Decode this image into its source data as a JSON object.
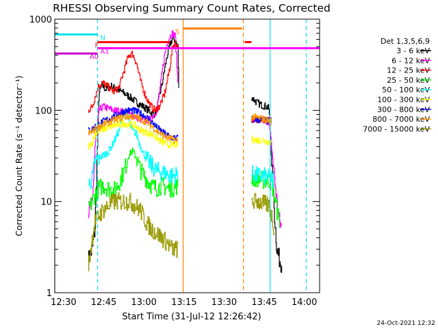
{
  "chart_data": {
    "type": "line",
    "title": "RHESSI Observing Summary Count Rates, Corrected",
    "xlabel": "Start Time (31-Jul-12 12:26:42)",
    "ylabel": "Corrected Count Rate (s⁻¹ detector⁻¹)",
    "yscale": "log",
    "ylim": [
      1,
      1000
    ],
    "xlim_minutes_after_1226_42": [
      0,
      99
    ],
    "x_tick_labels": [
      "12:30",
      "12:45",
      "13:00",
      "13:15",
      "13:30",
      "13:45",
      "14:00"
    ],
    "y_tick_labels": [
      "1",
      "10",
      "100",
      "1000"
    ],
    "legend_title": "Det 1,3,5,6,9",
    "legend_position": "right",
    "date_stamp": "24-Oct-2021 12:32",
    "series": [
      {
        "name": "3 - 6 keV",
        "color": "#000000",
        "seg1": [
          [
            12.5,
            2.3
          ],
          [
            14,
            3
          ],
          [
            15,
            5
          ],
          [
            16.5,
            150
          ],
          [
            17.5,
            190
          ],
          [
            19,
            170
          ],
          [
            21,
            185
          ],
          [
            23,
            170
          ],
          [
            25,
            160
          ],
          [
            28,
            140
          ],
          [
            31,
            120
          ],
          [
            33,
            110
          ],
          [
            35,
            100
          ],
          [
            37,
            90
          ],
          [
            38,
            100
          ],
          [
            39,
            140
          ],
          [
            40,
            190
          ],
          [
            41,
            280
          ],
          [
            42,
            400
          ],
          [
            43,
            520
          ],
          [
            44,
            620
          ],
          [
            45,
            580
          ],
          [
            46,
            500
          ],
          [
            46.5,
            100
          ]
        ],
        "seg2": [
          [
            73.5,
            140
          ],
          [
            75,
            125
          ],
          [
            77,
            115
          ],
          [
            79,
            110
          ],
          [
            80,
            105
          ],
          [
            80.5,
            60
          ],
          [
            81,
            30
          ],
          [
            82,
            8
          ],
          [
            83,
            3
          ],
          [
            84,
            2.3
          ],
          [
            85,
            2
          ]
        ]
      },
      {
        "name": "6 - 12 keV",
        "color": "#ff00ff",
        "seg1": [
          [
            12.5,
            8
          ],
          [
            14,
            9
          ],
          [
            15,
            40
          ],
          [
            16.5,
            100
          ],
          [
            18,
            110
          ],
          [
            20,
            105
          ],
          [
            22,
            100
          ],
          [
            24,
            98
          ],
          [
            26,
            95
          ],
          [
            28,
            90
          ],
          [
            30,
            85
          ],
          [
            32,
            80
          ],
          [
            34,
            78
          ],
          [
            36,
            80
          ],
          [
            38,
            100
          ],
          [
            39,
            150
          ],
          [
            40,
            250
          ],
          [
            41,
            400
          ],
          [
            42,
            550
          ],
          [
            43,
            650
          ],
          [
            44,
            700
          ],
          [
            45,
            650
          ],
          [
            46,
            200
          ]
        ],
        "seg2": [
          [
            73.5,
            80
          ],
          [
            75,
            78
          ],
          [
            77,
            78
          ],
          [
            79,
            76
          ],
          [
            80,
            75
          ],
          [
            81,
            40
          ],
          [
            82,
            20
          ],
          [
            83,
            10
          ],
          [
            84,
            6
          ],
          [
            85,
            5
          ]
        ]
      },
      {
        "name": "12 - 25 keV",
        "color": "#ff0000",
        "seg1": [
          [
            12.5,
            100
          ],
          [
            14,
            110
          ],
          [
            15,
            140
          ],
          [
            16.5,
            190
          ],
          [
            18,
            200
          ],
          [
            20,
            180
          ],
          [
            22,
            160
          ],
          [
            24,
            180
          ],
          [
            26,
            280
          ],
          [
            27.5,
            400
          ],
          [
            29,
            420
          ],
          [
            30.5,
            330
          ],
          [
            32,
            210
          ],
          [
            34,
            140
          ],
          [
            36,
            110
          ],
          [
            37.5,
            100
          ],
          [
            39,
            110
          ],
          [
            41,
            150
          ],
          [
            43,
            300
          ],
          [
            44,
            500
          ],
          [
            45,
            550
          ],
          [
            46,
            500
          ]
        ],
        "seg2": [
          [
            73.5,
            80
          ],
          [
            76,
            80
          ],
          [
            78,
            78
          ],
          [
            80,
            78
          ],
          [
            81,
            76
          ]
        ]
      },
      {
        "name": "25 - 50 keV",
        "color": "#00ff00",
        "seg1": [
          [
            12.5,
            8
          ],
          [
            14,
            10
          ],
          [
            15,
            12
          ],
          [
            16.5,
            14
          ],
          [
            18,
            15
          ],
          [
            20,
            14
          ],
          [
            22,
            13
          ],
          [
            24,
            16
          ],
          [
            26,
            22
          ],
          [
            27.5,
            32
          ],
          [
            29,
            36
          ],
          [
            30.5,
            30
          ],
          [
            32,
            22
          ],
          [
            34,
            18
          ],
          [
            36,
            15
          ],
          [
            38,
            14
          ],
          [
            40,
            15
          ],
          [
            42,
            14
          ],
          [
            44,
            14
          ],
          [
            46,
            15
          ]
        ],
        "seg2": [
          [
            73.5,
            18
          ],
          [
            76,
            18
          ],
          [
            78,
            17
          ],
          [
            80,
            17
          ],
          [
            81,
            16
          ],
          [
            82,
            12
          ],
          [
            83,
            8
          ],
          [
            84,
            6
          ]
        ]
      },
      {
        "name": "50 - 100 keV",
        "color": "#00ffff",
        "seg1": [
          [
            12.5,
            15
          ],
          [
            14,
            18
          ],
          [
            15,
            28
          ],
          [
            16.5,
            30
          ],
          [
            18,
            32
          ],
          [
            20,
            35
          ],
          [
            22,
            45
          ],
          [
            24,
            60
          ],
          [
            25,
            80
          ],
          [
            26,
            100
          ],
          [
            27.5,
            80
          ],
          [
            29,
            60
          ],
          [
            30.5,
            55
          ],
          [
            32,
            40
          ],
          [
            34,
            30
          ],
          [
            36,
            25
          ],
          [
            38,
            22
          ],
          [
            40,
            21
          ],
          [
            42,
            20
          ],
          [
            44,
            19
          ],
          [
            46,
            20
          ]
        ],
        "seg2": [
          [
            73.5,
            20
          ],
          [
            76,
            19
          ],
          [
            78,
            19
          ],
          [
            80,
            18
          ],
          [
            81,
            18
          ],
          [
            82,
            15
          ]
        ]
      },
      {
        "name": "100 - 300 keV",
        "color": "#ffff00",
        "seg1": [
          [
            12.5,
            40
          ],
          [
            14,
            45
          ],
          [
            15,
            55
          ],
          [
            16.5,
            60
          ],
          [
            18,
            62
          ],
          [
            20,
            65
          ],
          [
            22,
            68
          ],
          [
            24,
            70
          ],
          [
            26,
            72
          ],
          [
            28,
            70
          ],
          [
            30,
            68
          ],
          [
            32,
            60
          ],
          [
            34,
            58
          ],
          [
            36,
            55
          ],
          [
            38,
            50
          ],
          [
            40,
            45
          ],
          [
            42,
            42
          ],
          [
            44,
            42
          ],
          [
            46,
            42
          ]
        ],
        "seg2": [
          [
            73.5,
            48
          ],
          [
            76,
            47
          ],
          [
            78,
            47
          ],
          [
            80,
            45
          ],
          [
            81,
            44
          ]
        ]
      },
      {
        "name": "300 - 800 keV",
        "color": "#0000ff",
        "seg1": [
          [
            12.5,
            60
          ],
          [
            14,
            62
          ],
          [
            15,
            66
          ],
          [
            16.5,
            70
          ],
          [
            18,
            75
          ],
          [
            20,
            80
          ],
          [
            22,
            85
          ],
          [
            24,
            92
          ],
          [
            26,
            98
          ],
          [
            28,
            100
          ],
          [
            30,
            98
          ],
          [
            32,
            92
          ],
          [
            34,
            85
          ],
          [
            36,
            75
          ],
          [
            38,
            65
          ],
          [
            40,
            58
          ],
          [
            42,
            53
          ],
          [
            44,
            50
          ],
          [
            46,
            50
          ]
        ],
        "seg2": [
          [
            73.5,
            80
          ],
          [
            76,
            79
          ],
          [
            78,
            78
          ],
          [
            80,
            76
          ],
          [
            81,
            75
          ]
        ]
      },
      {
        "name": "800 - 7000 keV",
        "color": "#ff9900",
        "seg1": [
          [
            12.5,
            55
          ],
          [
            14,
            58
          ],
          [
            15,
            62
          ],
          [
            16.5,
            66
          ],
          [
            18,
            70
          ],
          [
            20,
            74
          ],
          [
            22,
            78
          ],
          [
            24,
            82
          ],
          [
            26,
            85
          ],
          [
            28,
            86
          ],
          [
            30,
            84
          ],
          [
            32,
            80
          ],
          [
            34,
            75
          ],
          [
            36,
            68
          ],
          [
            38,
            60
          ],
          [
            40,
            54
          ],
          [
            42,
            50
          ],
          [
            44,
            48
          ],
          [
            46,
            47
          ]
        ],
        "seg2": [
          [
            73.5,
            85
          ],
          [
            76,
            83
          ],
          [
            78,
            80
          ],
          [
            80,
            77
          ],
          [
            81,
            75
          ]
        ]
      },
      {
        "name": "7000 - 15000 keV",
        "color": "#999900",
        "seg1": [
          [
            12.5,
            2
          ],
          [
            14,
            4
          ],
          [
            15,
            6
          ],
          [
            16.5,
            7
          ],
          [
            18,
            8
          ],
          [
            20,
            9
          ],
          [
            22,
            10
          ],
          [
            24,
            10
          ],
          [
            26,
            10
          ],
          [
            28,
            10
          ],
          [
            30,
            9
          ],
          [
            32,
            8
          ],
          [
            34,
            6
          ],
          [
            36,
            5
          ],
          [
            38,
            4.5
          ],
          [
            40,
            4
          ],
          [
            42,
            3.5
          ],
          [
            44,
            3
          ],
          [
            46,
            3
          ]
        ],
        "seg2": [
          [
            73.5,
            10
          ],
          [
            76,
            10
          ],
          [
            78,
            9.5
          ],
          [
            80,
            9
          ],
          [
            81,
            7
          ],
          [
            82,
            5
          ]
        ]
      }
    ],
    "flag_bars": [
      {
        "label": "N",
        "color": "#00e5ee",
        "level": 680,
        "ranges": [
          [
            0,
            16
          ]
        ],
        "label_at": 17
      },
      {
        "label": "A0",
        "color": "#cc00cc",
        "level": 420,
        "ranges": [
          [
            0,
            16
          ]
        ],
        "label_at": 13
      },
      {
        "label": "A1",
        "color": "#ff00ff",
        "level": 480,
        "ranges": [
          [
            16,
            99
          ]
        ],
        "label_at": 17
      },
      {
        "label": "F",
        "color": "#ff0000",
        "level": 560,
        "ranges": [
          [
            16,
            43
          ],
          [
            71,
            73.5
          ]
        ],
        "label_at": 15
      },
      {
        "label": "S",
        "color": "#ff7f00",
        "level": 790,
        "ranges": [
          [
            48,
            70
          ]
        ],
        "label_at": 45
      }
    ],
    "vertical_lines": [
      {
        "x": 0,
        "color": "#00e5ee",
        "style": "solid"
      },
      {
        "x": 16,
        "color": "#00e5ee",
        "style": "dashed"
      },
      {
        "x": 48,
        "color": "#ff7f00",
        "style": "solid"
      },
      {
        "x": 70.5,
        "color": "#ff7f00",
        "style": "dashed"
      },
      {
        "x": 80.5,
        "color": "#00e5ee",
        "style": "solid"
      },
      {
        "x": 94,
        "color": "#00e5ee",
        "style": "dashed"
      }
    ]
  }
}
